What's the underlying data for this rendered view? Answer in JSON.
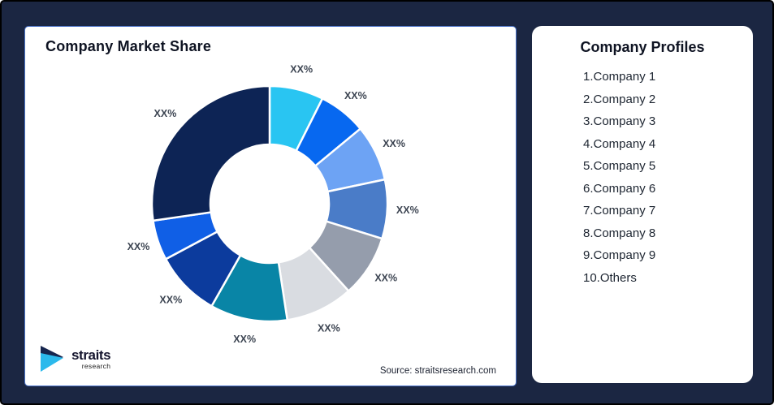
{
  "app": {
    "background_color": "#1B2642",
    "outer_border_color": "#000000"
  },
  "left_panel": {
    "title": "Company Market Share",
    "source": "Source: straitsresearch.com",
    "border_color": "#4A72C8"
  },
  "logo": {
    "name": "straits",
    "tagline": "research",
    "mark_top_color": "#16254E",
    "mark_bottom_color": "#2BB9EC"
  },
  "right_panel": {
    "title": "Company Profiles",
    "items": [
      "1.Company 1",
      "2.Company 2",
      "3.Company 3",
      "4.Company 4",
      "5.Company 5",
      "6.Company 6",
      "7.Company 7",
      "8.Company 8",
      "9.Company 9",
      "10.Others"
    ]
  },
  "chart_data": {
    "type": "pie",
    "subtype": "donut",
    "title": "Company Market Share",
    "start_angle_deg": 0,
    "direction": "clockwise",
    "inner_radius_ratio": 0.5,
    "legend": "none",
    "value_labels_shown_as": "XX%",
    "series": [
      {
        "name": "Company 1",
        "value_pct_est": 7.4,
        "label": "XX%",
        "color": "#29C5F2"
      },
      {
        "name": "Company 2",
        "value_pct_est": 6.6,
        "label": "XX%",
        "color": "#0768F0"
      },
      {
        "name": "Company 3",
        "value_pct_est": 7.7,
        "label": "XX%",
        "color": "#6DA3F4"
      },
      {
        "name": "Company 4",
        "value_pct_est": 8.1,
        "label": "XX%",
        "color": "#4A7CC8"
      },
      {
        "name": "Company 5",
        "value_pct_est": 8.5,
        "label": "XX%",
        "color": "#959DAC"
      },
      {
        "name": "Company 6",
        "value_pct_est": 9.3,
        "label": "XX%",
        "color": "#D9DCE1"
      },
      {
        "name": "Company 7",
        "value_pct_est": 10.6,
        "label": "XX%",
        "color": "#0985A6"
      },
      {
        "name": "Company 8",
        "value_pct_est": 9.0,
        "label": "XX%",
        "color": "#0C3B9D"
      },
      {
        "name": "Company 9",
        "value_pct_est": 5.5,
        "label": "XX%",
        "color": "#105FE6"
      },
      {
        "name": "Others",
        "value_pct_est": 27.3,
        "label": "XX%",
        "color": "#0D2455"
      }
    ]
  }
}
